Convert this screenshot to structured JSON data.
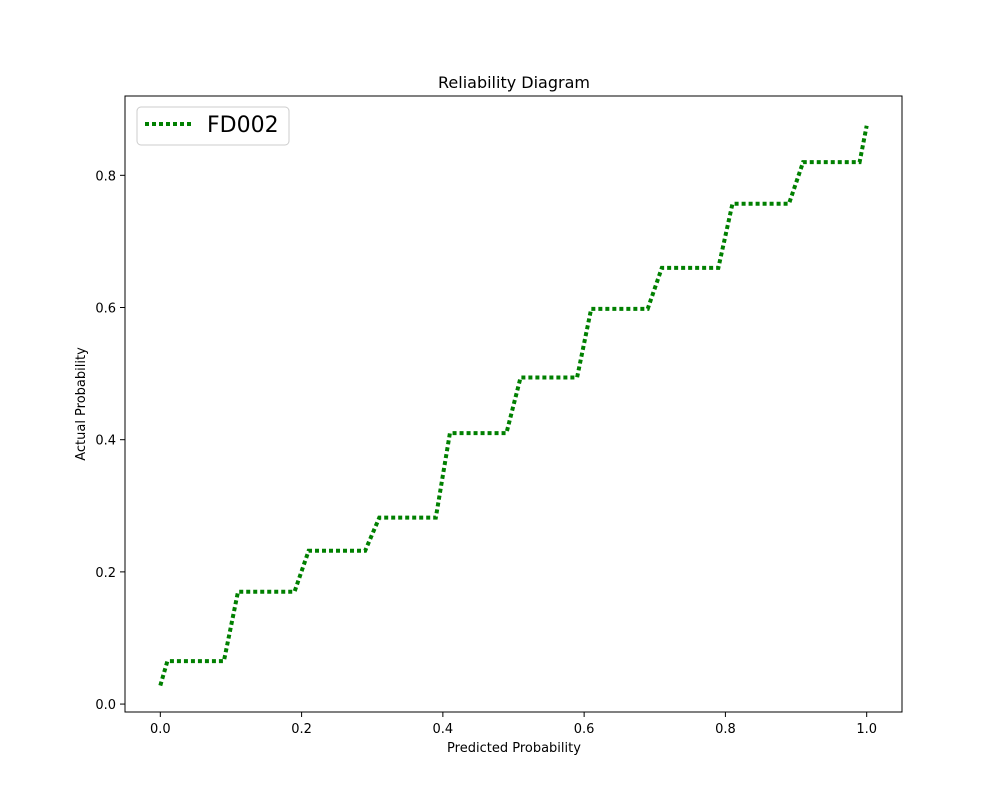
{
  "chart_data": {
    "type": "line",
    "title": "Reliability Diagram",
    "xlabel": "Predicted Probability",
    "ylabel": "Actual Probability",
    "xlim": [
      -0.05,
      1.05
    ],
    "ylim": [
      -0.012,
      0.92
    ],
    "xticks": [
      0.0,
      0.2,
      0.4,
      0.6,
      0.8,
      1.0
    ],
    "xtick_labels": [
      "0.0",
      "0.2",
      "0.4",
      "0.6",
      "0.8",
      "1.0"
    ],
    "yticks": [
      0.0,
      0.2,
      0.4,
      0.6,
      0.8
    ],
    "ytick_labels": [
      "0.0",
      "0.2",
      "0.4",
      "0.6",
      "0.8"
    ],
    "grid": false,
    "legend_position": "top-left",
    "series": [
      {
        "name": "FD002",
        "color": "#008000",
        "linestyle": "dotted",
        "x": [
          0.0,
          0.01,
          0.09,
          0.11,
          0.19,
          0.21,
          0.29,
          0.31,
          0.39,
          0.41,
          0.49,
          0.51,
          0.59,
          0.61,
          0.69,
          0.71,
          0.79,
          0.81,
          0.89,
          0.91,
          0.99,
          1.0
        ],
        "y": [
          0.028,
          0.065,
          0.065,
          0.17,
          0.17,
          0.232,
          0.232,
          0.282,
          0.282,
          0.41,
          0.41,
          0.494,
          0.494,
          0.598,
          0.598,
          0.66,
          0.66,
          0.757,
          0.757,
          0.82,
          0.82,
          0.875
        ]
      }
    ]
  }
}
